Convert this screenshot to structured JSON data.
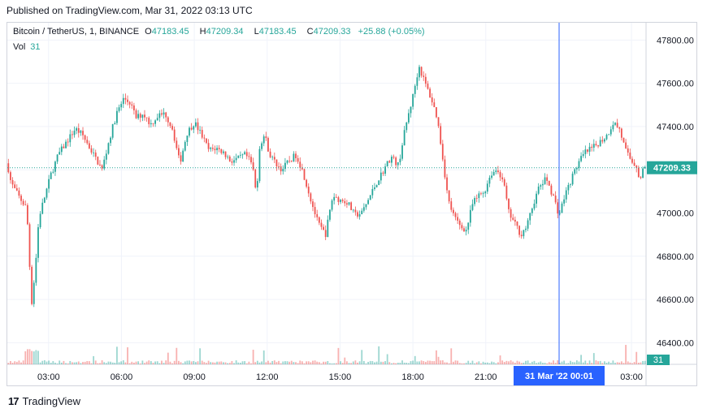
{
  "header": {
    "published": "Published on TradingView.com, Mar 31, 2022 03:13 UTC"
  },
  "legend": {
    "symbol": "Bitcoin / TetherUS, 1, BINANCE",
    "o_label": "O",
    "o_value": "47183.45",
    "h_label": "H",
    "h_value": "47209.34",
    "l_label": "L",
    "l_value": "47183.45",
    "c_label": "C",
    "c_value": "47209.33",
    "change": "+25.88 (+0.05%)",
    "vol_label": "Vol",
    "vol_value": "31"
  },
  "footer": {
    "brand": "TradingView"
  },
  "colors": {
    "up": "#26a69a",
    "down": "#ef5350",
    "crosshair": "#2962ff",
    "grid": "#f0f3fa"
  },
  "chart_data": {
    "type": "candlestick",
    "title": "Bitcoin / TetherUS, 1, BINANCE",
    "y_axis": {
      "position": "right",
      "ylim": [
        46300,
        47880
      ],
      "ticks": [
        "47800.00",
        "47600.00",
        "47400.00",
        "47200.00",
        "47000.00",
        "46800.00",
        "46600.00",
        "46400.00"
      ]
    },
    "x_axis": {
      "ticks": [
        "03:00",
        "06:00",
        "09:00",
        "12:00",
        "15:00",
        "18:00",
        "21:00",
        "03:00"
      ],
      "range_hours": [
        1.3,
        27.6
      ]
    },
    "last_price": "47209.33",
    "last_volume": "31",
    "crosshair_label": "31 Mar '22   00:01",
    "crosshair_x_hour": 24.02,
    "grid": true,
    "price_path": [
      [
        1.3,
        47230
      ],
      [
        1.45,
        47140
      ],
      [
        1.75,
        47080
      ],
      [
        2.1,
        47020
      ],
      [
        2.3,
        46580
      ],
      [
        2.45,
        46740
      ],
      [
        2.6,
        46980
      ],
      [
        2.85,
        47080
      ],
      [
        3.1,
        47180
      ],
      [
        3.4,
        47270
      ],
      [
        3.75,
        47330
      ],
      [
        4.1,
        47390
      ],
      [
        4.4,
        47360
      ],
      [
        4.7,
        47300
      ],
      [
        4.95,
        47250
      ],
      [
        5.2,
        47200
      ],
      [
        5.5,
        47340
      ],
      [
        5.8,
        47460
      ],
      [
        6.1,
        47530
      ],
      [
        6.35,
        47510
      ],
      [
        6.6,
        47440
      ],
      [
        6.9,
        47460
      ],
      [
        7.2,
        47410
      ],
      [
        7.5,
        47450
      ],
      [
        7.8,
        47460
      ],
      [
        8.1,
        47390
      ],
      [
        8.4,
        47230
      ],
      [
        8.7,
        47370
      ],
      [
        9.0,
        47420
      ],
      [
        9.3,
        47360
      ],
      [
        9.6,
        47290
      ],
      [
        9.9,
        47300
      ],
      [
        10.2,
        47280
      ],
      [
        10.5,
        47240
      ],
      [
        10.8,
        47250
      ],
      [
        11.1,
        47270
      ],
      [
        11.4,
        47220
      ],
      [
        11.55,
        47080
      ],
      [
        11.7,
        47320
      ],
      [
        11.9,
        47360
      ],
      [
        12.1,
        47270
      ],
      [
        12.35,
        47230
      ],
      [
        12.6,
        47200
      ],
      [
        12.9,
        47240
      ],
      [
        13.2,
        47270
      ],
      [
        13.5,
        47180
      ],
      [
        13.8,
        47060
      ],
      [
        14.1,
        46950
      ],
      [
        14.4,
        46900
      ],
      [
        14.7,
        47080
      ],
      [
        15.0,
        47060
      ],
      [
        15.3,
        47050
      ],
      [
        15.6,
        46990
      ],
      [
        15.9,
        47000
      ],
      [
        16.2,
        47070
      ],
      [
        16.5,
        47140
      ],
      [
        16.8,
        47200
      ],
      [
        17.1,
        47260
      ],
      [
        17.4,
        47220
      ],
      [
        17.7,
        47400
      ],
      [
        18.0,
        47540
      ],
      [
        18.25,
        47680
      ],
      [
        18.5,
        47600
      ],
      [
        18.75,
        47530
      ],
      [
        19.0,
        47440
      ],
      [
        19.2,
        47280
      ],
      [
        19.45,
        47060
      ],
      [
        19.7,
        46980
      ],
      [
        19.95,
        46940
      ],
      [
        20.2,
        46920
      ],
      [
        20.45,
        47040
      ],
      [
        20.7,
        47080
      ],
      [
        20.95,
        47100
      ],
      [
        21.2,
        47180
      ],
      [
        21.45,
        47200
      ],
      [
        21.7,
        47160
      ],
      [
        21.95,
        47000
      ],
      [
        22.2,
        46950
      ],
      [
        22.45,
        46900
      ],
      [
        22.7,
        46940
      ],
      [
        22.95,
        47040
      ],
      [
        23.2,
        47120
      ],
      [
        23.5,
        47160
      ],
      [
        23.8,
        47070
      ],
      [
        24.02,
        46990
      ],
      [
        24.25,
        47080
      ],
      [
        24.5,
        47150
      ],
      [
        24.8,
        47230
      ],
      [
        25.1,
        47280
      ],
      [
        25.4,
        47300
      ],
      [
        25.7,
        47330
      ],
      [
        26.0,
        47360
      ],
      [
        26.25,
        47420
      ],
      [
        26.5,
        47390
      ],
      [
        26.75,
        47290
      ],
      [
        27.0,
        47240
      ],
      [
        27.2,
        47220
      ],
      [
        27.35,
        47150
      ],
      [
        27.5,
        47209
      ]
    ]
  }
}
